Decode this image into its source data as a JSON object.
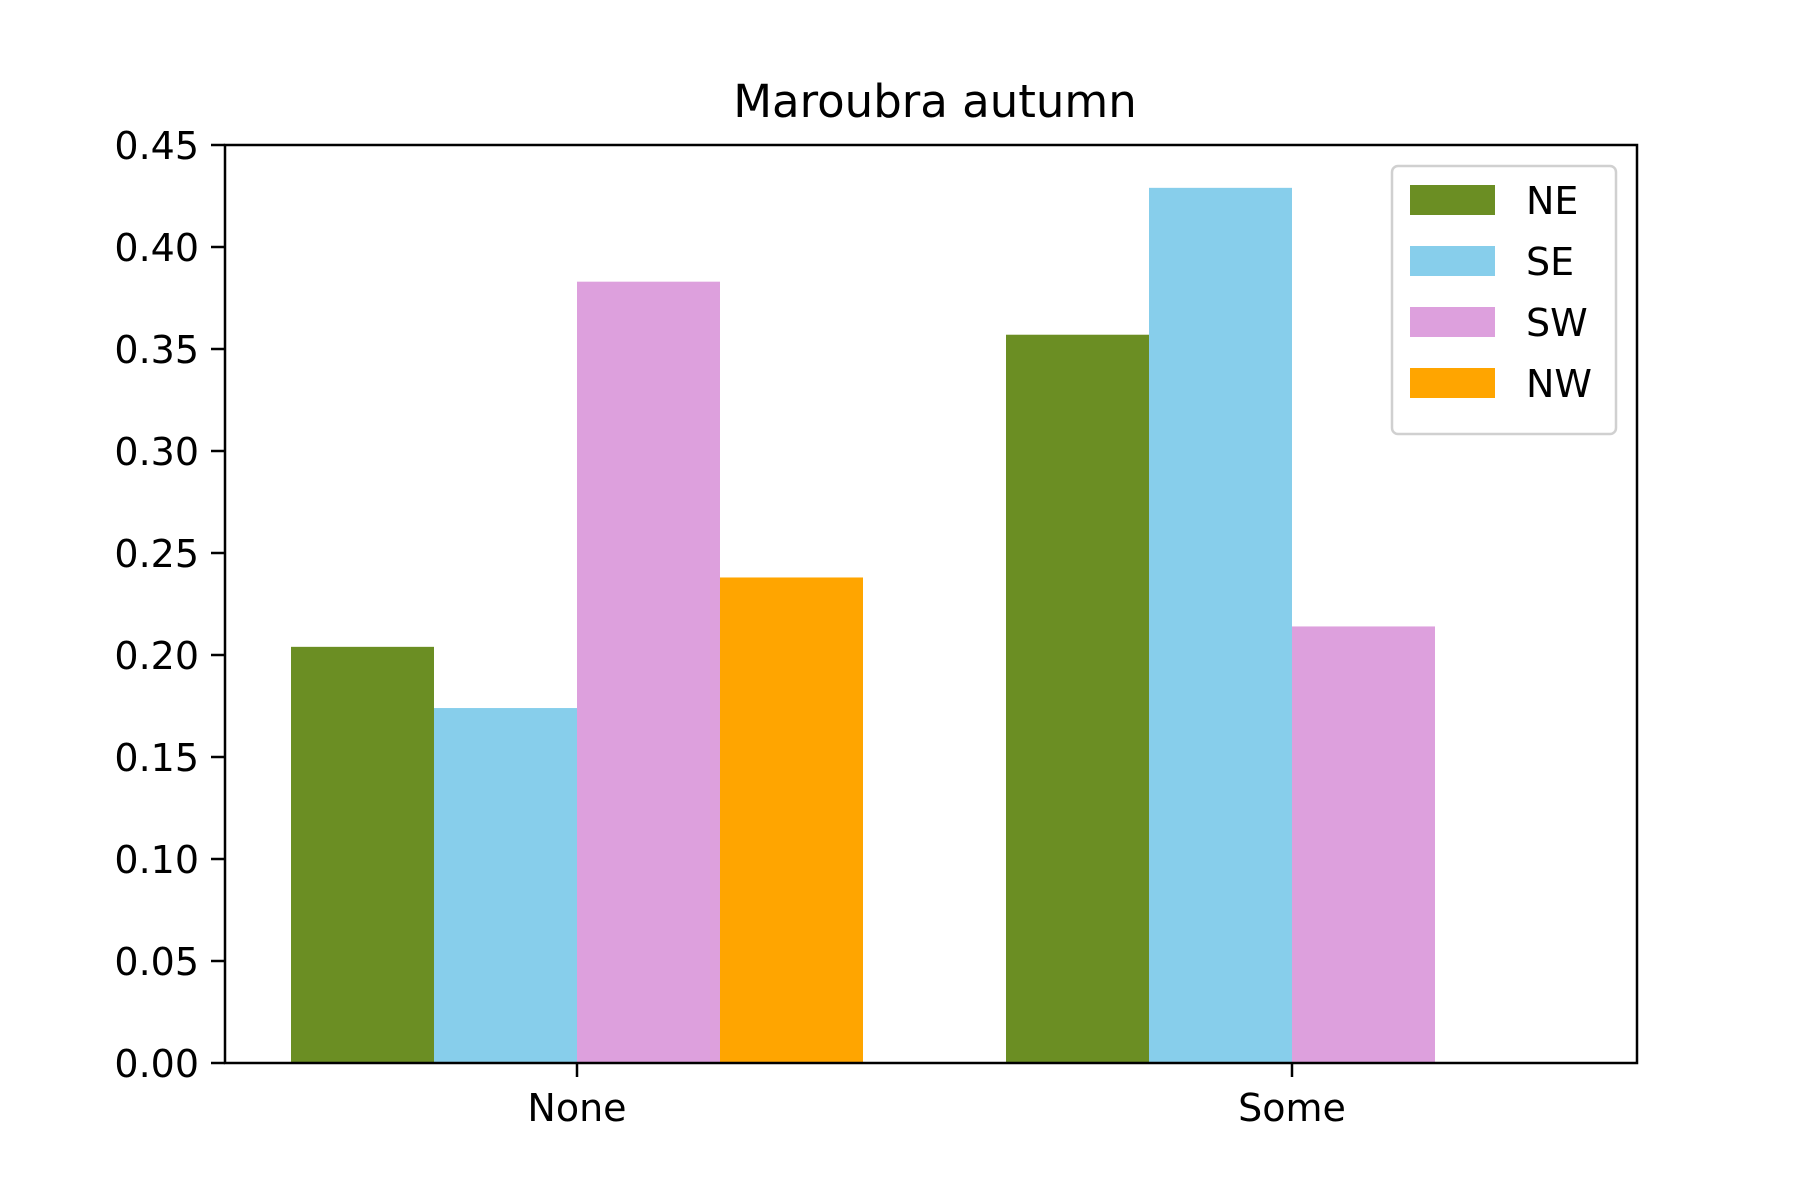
{
  "chart_data": {
    "type": "bar",
    "title": "Maroubra autumn",
    "xlabel": "",
    "ylabel": "",
    "categories": [
      "None",
      "Some"
    ],
    "ylim": [
      0,
      0.45
    ],
    "yticks": [
      "0.00",
      "0.05",
      "0.10",
      "0.15",
      "0.20",
      "0.25",
      "0.30",
      "0.35",
      "0.40",
      "0.45"
    ],
    "legend_position": "top-right",
    "grid": false,
    "series": [
      {
        "name": "NE",
        "color": "#6b8e23",
        "values": [
          0.204,
          0.357
        ]
      },
      {
        "name": "SE",
        "color": "#87ceeb",
        "values": [
          0.174,
          0.429
        ]
      },
      {
        "name": "SW",
        "color": "#dda0dd",
        "values": [
          0.383,
          0.214
        ]
      },
      {
        "name": "NW",
        "color": "#ffa500",
        "values": [
          0.238,
          null
        ]
      }
    ]
  }
}
